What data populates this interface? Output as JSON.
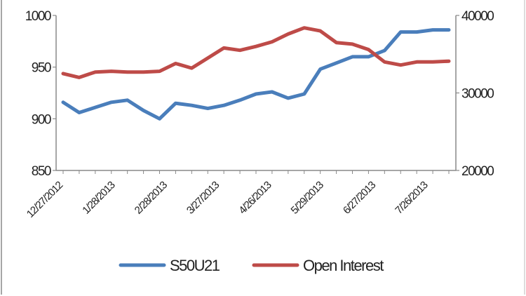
{
  "chart_data": {
    "type": "line",
    "title": "",
    "xlabel": "",
    "ylabel": "",
    "categories": [
      "",
      ""
    ],
    "x": [
      0,
      1,
      2,
      3,
      4,
      5,
      6,
      7,
      8,
      9,
      10,
      11,
      12,
      13,
      14,
      15,
      16,
      17,
      18,
      19,
      20,
      21,
      22,
      23,
      24
    ],
    "x_tick_labels": [
      "12/27/2012",
      "1/28/2013",
      "2/28/2013",
      "3/27/2013",
      "4/26/2013",
      "5/29/2013",
      "6/27/2013",
      "7/26/2013"
    ],
    "y_left": {
      "ylim": [
        850,
        1000
      ],
      "ticks": [
        850,
        900,
        950,
        1000
      ],
      "tick_labels": [
        "850",
        "900",
        "950",
        "1000"
      ]
    },
    "y_right": {
      "ylim": [
        20000,
        40000
      ],
      "ticks": [
        20000,
        30000,
        40000
      ],
      "tick_labels": [
        "20000",
        "30000",
        "40000"
      ]
    },
    "series": [
      {
        "name": "S50U21",
        "axis": "left",
        "color": "#4a7ebb",
        "values": [
          916,
          906,
          911,
          916,
          918,
          908,
          900,
          915,
          913,
          910,
          913,
          918,
          924,
          926,
          920,
          924,
          948,
          954,
          960,
          960,
          966,
          984,
          984,
          986,
          986
        ]
      },
      {
        "name": "Open Interest",
        "axis": "right",
        "color": "#be4b48",
        "values": [
          32500,
          32000,
          32700,
          32800,
          32700,
          32700,
          32800,
          33800,
          33200,
          34500,
          35800,
          35500,
          36000,
          36600,
          37600,
          38400,
          38000,
          36500,
          36300,
          35600,
          34000,
          33600,
          34000,
          34000,
          34100
        ]
      }
    ],
    "legend": "bottom",
    "grid": false
  }
}
